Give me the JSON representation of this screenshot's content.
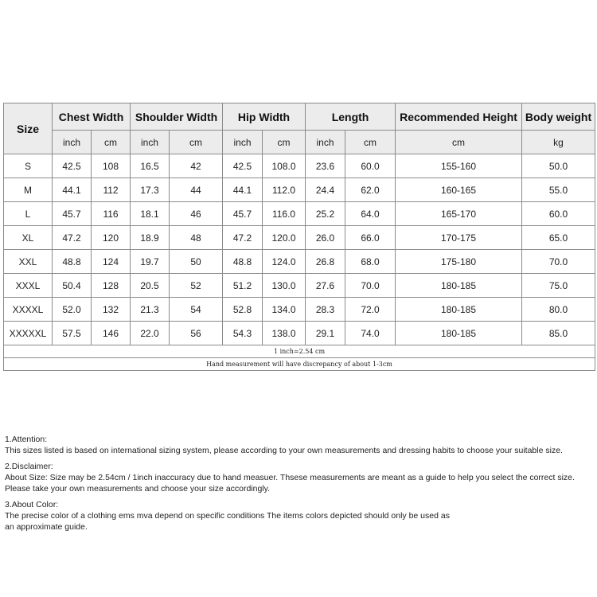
{
  "table": {
    "headers": [
      "Size",
      "Chest Width",
      "Shoulder Width",
      "Hip Width",
      "Length",
      "Recommended Height",
      "Body weight"
    ],
    "units": [
      "inch",
      "cm",
      "inch",
      "cm",
      "inch",
      "cm",
      "inch",
      "cm",
      "cm",
      "kg"
    ],
    "rows": [
      [
        "S",
        "42.5",
        "108",
        "16.5",
        "42",
        "42.5",
        "108.0",
        "23.6",
        "60.0",
        "155-160",
        "50.0"
      ],
      [
        "M",
        "44.1",
        "112",
        "17.3",
        "44",
        "44.1",
        "112.0",
        "24.4",
        "62.0",
        "160-165",
        "55.0"
      ],
      [
        "L",
        "45.7",
        "116",
        "18.1",
        "46",
        "45.7",
        "116.0",
        "25.2",
        "64.0",
        "165-170",
        "60.0"
      ],
      [
        "XL",
        "47.2",
        "120",
        "18.9",
        "48",
        "47.2",
        "120.0",
        "26.0",
        "66.0",
        "170-175",
        "65.0"
      ],
      [
        "XXL",
        "48.8",
        "124",
        "19.7",
        "50",
        "48.8",
        "124.0",
        "26.8",
        "68.0",
        "175-180",
        "70.0"
      ],
      [
        "XXXL",
        "50.4",
        "128",
        "20.5",
        "52",
        "51.2",
        "130.0",
        "27.6",
        "70.0",
        "180-185",
        "75.0"
      ],
      [
        "XXXXL",
        "52.0",
        "132",
        "21.3",
        "54",
        "52.8",
        "134.0",
        "28.3",
        "72.0",
        "180-185",
        "80.0"
      ],
      [
        "XXXXXL",
        "57.5",
        "146",
        "22.0",
        "56",
        "54.3",
        "138.0",
        "29.1",
        "74.0",
        "180-185",
        "85.0"
      ]
    ],
    "note1": "1 inch=2.54 cm",
    "note2": "Hand measurement will have discrepancy of about 1-3cm"
  },
  "notes": [
    {
      "title": "1.Attention:",
      "lines": [
        "This sizes listed is based on international sizing system, please according to your own measurements and dressing habits to choose your suitable size."
      ]
    },
    {
      "title": "2.Disclaimer:",
      "lines": [
        "About Size: Size may be 2.54cm / 1inch inaccuracy due to hand measuer. Thsese measurements are meant as a guide to help you select the correct size.",
        "Please take your own measurements and choose your size accordingly."
      ]
    },
    {
      "title": "3.About Color:",
      "lines": [
        "The precise color of a clothing ems mva depend on specific conditions The items colors depicted should only be used as",
        "an approximate guide."
      ]
    }
  ]
}
